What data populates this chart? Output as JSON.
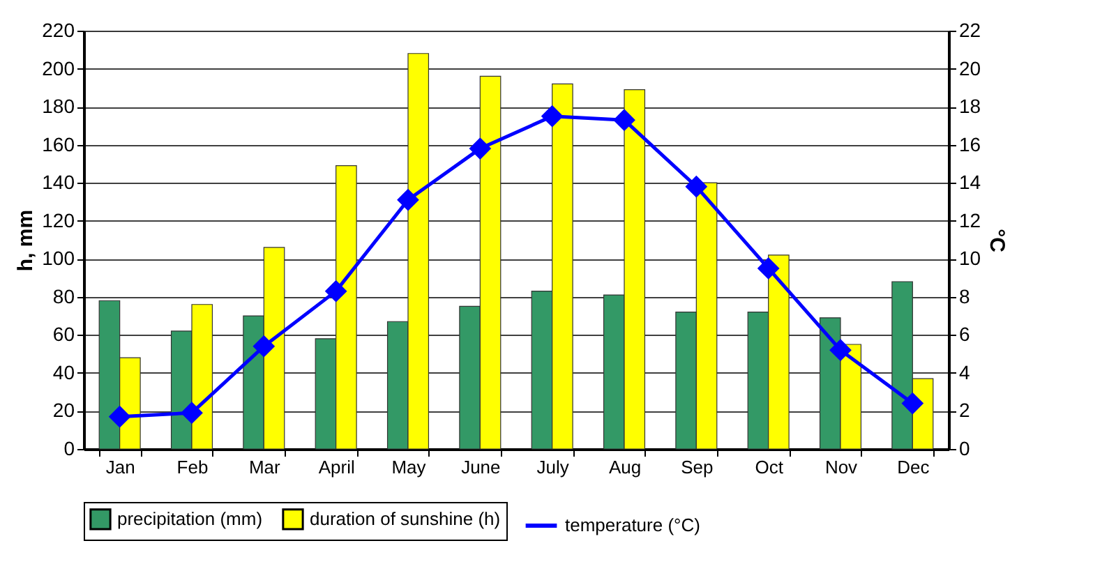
{
  "chart_data": {
    "type": "bar",
    "categories": [
      "Jan",
      "Feb",
      "Mar",
      "April",
      "May",
      "June",
      "July",
      "Aug",
      "Sep",
      "Oct",
      "Nov",
      "Dec"
    ],
    "ylabel": "h, mm",
    "y2label": "°C",
    "ylim": [
      0,
      220
    ],
    "yticks": [
      0,
      20,
      40,
      60,
      80,
      100,
      120,
      140,
      160,
      180,
      200,
      220
    ],
    "y2lim": [
      0,
      22
    ],
    "y2ticks": [
      0,
      2,
      4,
      6,
      8,
      10,
      12,
      14,
      16,
      18,
      20,
      22
    ],
    "grid": "y",
    "legend": "bottom",
    "series": [
      {
        "name": "precipitation (mm)",
        "color": "#339966",
        "values": [
          78,
          62,
          70,
          58,
          67,
          75,
          83,
          81,
          72,
          72,
          69,
          88
        ]
      },
      {
        "name": "duration of sunshine (h)",
        "color": "#ffff00",
        "values": [
          48,
          76,
          106,
          149,
          208,
          196,
          192,
          189,
          140,
          102,
          55,
          37
        ]
      },
      {
        "name": "temperature (°C)",
        "type": "line",
        "axis": "y2",
        "color": "#0000ff",
        "marker": "diamond",
        "values": [
          1.7,
          1.9,
          5.4,
          8.3,
          13.1,
          15.8,
          17.5,
          17.3,
          13.8,
          9.5,
          5.2,
          2.4
        ]
      }
    ]
  }
}
